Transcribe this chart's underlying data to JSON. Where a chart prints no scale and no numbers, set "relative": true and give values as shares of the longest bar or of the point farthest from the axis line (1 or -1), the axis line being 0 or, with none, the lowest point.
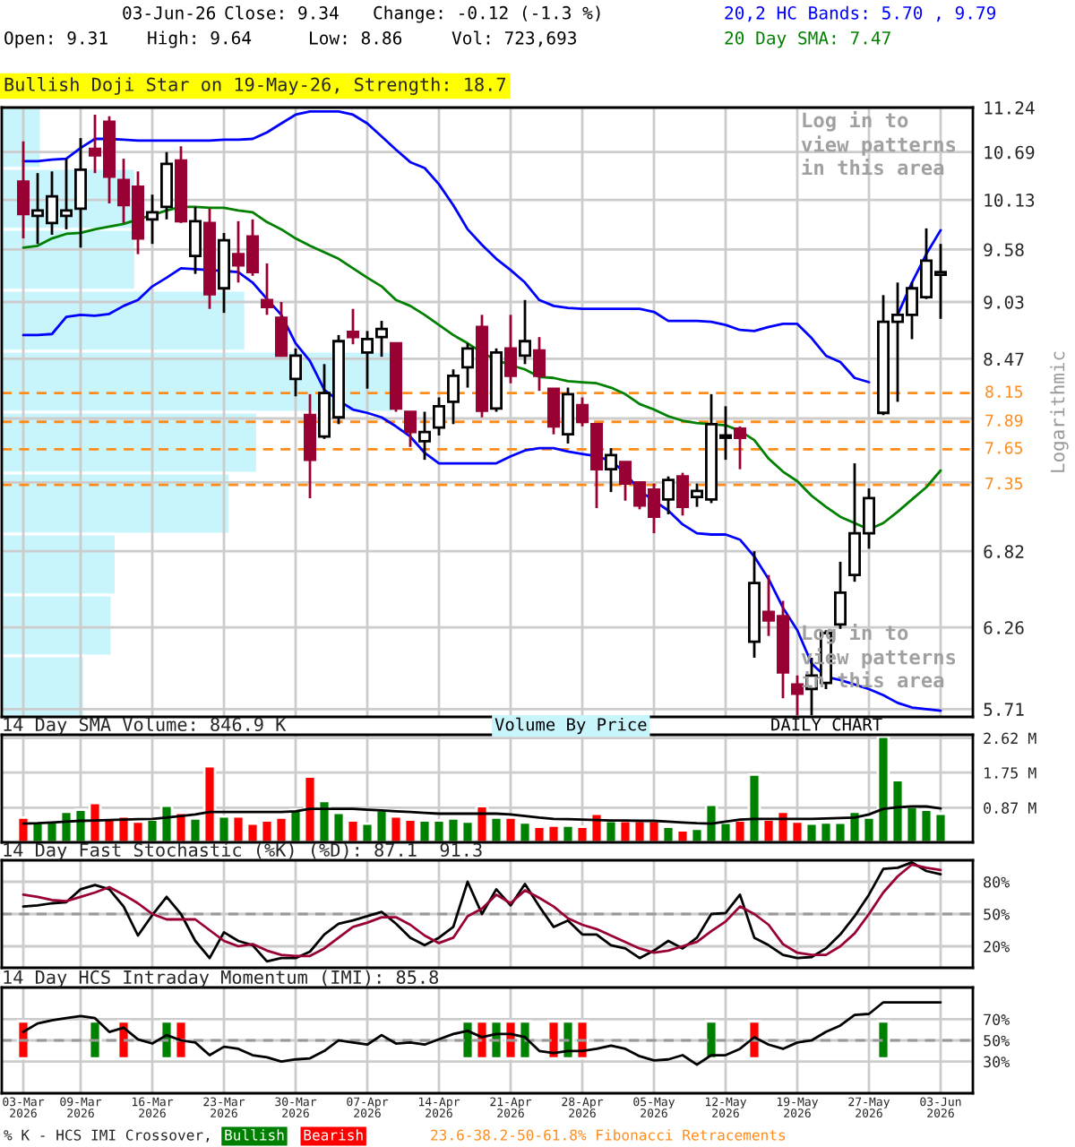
{
  "chart_data": [
    {
      "type": "candlestick",
      "title": "Bullish Doji Star on 19-May-26, Strength: 18.7",
      "ylabel": "Logarithmic",
      "categories": [
        null,
        null,
        null,
        null,
        null,
        null,
        null,
        null,
        null,
        null,
        null,
        null,
        null,
        null,
        null,
        null,
        null,
        null,
        null,
        null,
        null,
        null,
        null,
        null,
        null,
        null,
        null,
        null,
        null,
        null,
        null,
        null,
        null,
        null,
        null,
        null,
        null,
        null,
        null,
        null,
        null,
        null,
        null,
        null,
        null,
        null,
        null,
        null,
        null,
        null,
        null,
        null,
        null,
        null,
        null,
        null,
        null,
        null,
        null,
        null,
        null,
        null,
        null,
        null,
        null
      ],
      "ohlc": [
        [
          10.34,
          10.82,
          9.7,
          9.97
        ],
        [
          9.95,
          10.44,
          9.64,
          10.01
        ],
        [
          9.87,
          10.46,
          9.74,
          10.17
        ],
        [
          9.95,
          10.61,
          9.8,
          10.01
        ],
        [
          10.03,
          10.86,
          9.6,
          10.48
        ],
        [
          10.73,
          11.15,
          10.44,
          10.65
        ],
        [
          11.06,
          11.13,
          10.09,
          10.4
        ],
        [
          10.36,
          10.61,
          9.87,
          10.07
        ],
        [
          10.28,
          10.46,
          9.53,
          9.7
        ],
        [
          9.91,
          10.19,
          9.64,
          9.99
        ],
        [
          10.05,
          10.69,
          9.91,
          10.55
        ],
        [
          10.59,
          10.76,
          9.87,
          9.89
        ],
        [
          9.51,
          10.05,
          9.32,
          9.89
        ],
        [
          9.87,
          10.03,
          8.96,
          9.11
        ],
        [
          9.17,
          9.76,
          8.92,
          9.68
        ],
        [
          9.53,
          9.89,
          9.23,
          9.41
        ],
        [
          9.72,
          9.91,
          9.3,
          9.34
        ],
        [
          9.05,
          9.43,
          8.9,
          8.98
        ],
        [
          8.87,
          9.03,
          8.49,
          8.5
        ],
        [
          8.28,
          8.57,
          8.12,
          8.5
        ],
        [
          7.95,
          8.14,
          7.24,
          7.56
        ],
        [
          7.76,
          8.42,
          7.74,
          8.15
        ],
        [
          7.93,
          8.7,
          7.87,
          8.64
        ],
        [
          8.73,
          8.96,
          8.61,
          8.68
        ],
        [
          8.53,
          8.74,
          8.19,
          8.66
        ],
        [
          8.68,
          8.84,
          8.49,
          8.76
        ],
        [
          8.62,
          8.62,
          7.98,
          8.01
        ],
        [
          7.98,
          7.98,
          7.67,
          7.8
        ],
        [
          7.72,
          7.98,
          7.56,
          7.8
        ],
        [
          7.84,
          8.11,
          7.77,
          8.03
        ],
        [
          8.07,
          8.37,
          7.87,
          8.31
        ],
        [
          8.39,
          8.62,
          8.2,
          8.57
        ],
        [
          8.78,
          8.9,
          7.93,
          7.99
        ],
        [
          8.01,
          8.57,
          7.98,
          8.53
        ],
        [
          8.57,
          8.9,
          8.24,
          8.31
        ],
        [
          8.5,
          9.05,
          8.42,
          8.64
        ],
        [
          8.55,
          8.68,
          8.17,
          8.31
        ],
        [
          8.19,
          8.19,
          7.78,
          7.85
        ],
        [
          7.78,
          8.2,
          7.7,
          8.14
        ],
        [
          8.04,
          8.11,
          7.85,
          7.89
        ],
        [
          7.87,
          7.87,
          7.16,
          7.48
        ],
        [
          7.48,
          7.66,
          7.29,
          7.6
        ],
        [
          7.54,
          7.54,
          7.22,
          7.36
        ],
        [
          7.37,
          7.37,
          7.15,
          7.18
        ],
        [
          7.31,
          7.36,
          6.96,
          7.09
        ],
        [
          7.23,
          7.42,
          7.11,
          7.39
        ],
        [
          7.42,
          7.45,
          7.1,
          7.17
        ],
        [
          7.25,
          7.36,
          7.17,
          7.3
        ],
        [
          7.23,
          8.14,
          7.2,
          7.87
        ],
        [
          7.75,
          8.03,
          7.56,
          7.77
        ],
        [
          7.83,
          7.85,
          7.48,
          7.75
        ],
        [
          6.16,
          6.82,
          6.05,
          6.58
        ],
        [
          6.37,
          6.64,
          6.2,
          6.31
        ],
        [
          6.34,
          6.45,
          5.78,
          5.95
        ],
        [
          5.87,
          5.93,
          5.67,
          5.81
        ],
        [
          5.84,
          6.05,
          5.67,
          5.93
        ],
        [
          5.88,
          6.24,
          5.84,
          6.22
        ],
        [
          6.28,
          6.74,
          6.25,
          6.51
        ],
        [
          6.64,
          7.53,
          6.59,
          6.96
        ],
        [
          6.96,
          7.32,
          6.84,
          7.24
        ],
        [
          7.97,
          9.1,
          7.95,
          8.83
        ],
        [
          8.83,
          9.23,
          8.07,
          8.9
        ],
        [
          8.9,
          9.23,
          8.66,
          9.17
        ],
        [
          9.08,
          9.81,
          9.06,
          9.46
        ],
        [
          9.31,
          9.64,
          8.86,
          9.34
        ]
      ],
      "series": [
        {
          "type": "line",
          "name": "20,2 HC Bands: 5.70 , 9.79",
          "color": "#0000ff",
          "values": [
            10.58,
            10.58,
            10.6,
            10.61,
            10.74,
            10.85,
            10.85,
            10.84,
            10.83,
            10.83,
            10.83,
            10.83,
            10.83,
            10.83,
            10.84,
            10.84,
            10.85,
            10.93,
            11.04,
            11.15,
            11.19,
            11.19,
            11.19,
            11.15,
            11.04,
            10.88,
            10.72,
            10.57,
            10.5,
            10.31,
            10.07,
            9.8,
            9.63,
            9.48,
            9.36,
            9.23,
            9.05,
            8.99,
            8.97,
            8.96,
            8.96,
            8.96,
            8.96,
            8.96,
            8.93,
            8.84,
            8.84,
            8.84,
            8.83,
            8.8,
            8.75,
            8.74,
            8.78,
            8.81,
            8.81,
            8.67,
            8.5,
            8.44,
            8.29,
            8.25,
            null,
            8.9,
            9.23,
            9.53,
            9.79
          ]
        },
        {
          "type": "line",
          "color": "#0000ff",
          "values": [
            8.7,
            8.7,
            8.71,
            8.88,
            8.9,
            8.89,
            8.91,
            8.99,
            9.05,
            9.19,
            9.28,
            9.38,
            9.37,
            9.36,
            9.35,
            9.34,
            9.23,
            9.06,
            8.9,
            8.62,
            8.45,
            8.18,
            8.08,
            8.0,
            7.97,
            7.93,
            7.85,
            7.76,
            7.62,
            7.53,
            7.53,
            7.53,
            7.53,
            7.53,
            7.59,
            7.64,
            7.66,
            7.66,
            7.63,
            7.61,
            7.59,
            7.55,
            7.45,
            7.3,
            7.22,
            7.14,
            7.03,
            6.96,
            6.95,
            6.95,
            6.91,
            6.78,
            6.61,
            6.4,
            6.24,
            6.01,
            5.92,
            5.9,
            5.87,
            5.84,
            5.8,
            5.75,
            5.72,
            5.71,
            5.7
          ]
        },
        {
          "type": "line",
          "name": "20 Day SMA: 7.47",
          "color": "#008000",
          "values": [
            9.6,
            9.62,
            9.7,
            9.75,
            9.76,
            9.8,
            9.83,
            9.86,
            9.91,
            9.96,
            10.01,
            10.05,
            10.05,
            10.04,
            10.04,
            10.01,
            9.99,
            9.88,
            9.8,
            9.7,
            9.62,
            9.55,
            9.48,
            9.38,
            9.28,
            9.19,
            9.05,
            8.99,
            8.9,
            8.8,
            8.7,
            8.62,
            8.53,
            8.46,
            8.41,
            8.37,
            8.3,
            8.29,
            8.26,
            8.25,
            8.24,
            8.2,
            8.14,
            8.05,
            8.0,
            7.94,
            7.9,
            7.88,
            7.87,
            7.86,
            7.81,
            7.73,
            7.57,
            7.46,
            7.38,
            7.26,
            7.17,
            7.09,
            7.04,
            6.99,
            7.04,
            7.13,
            7.23,
            7.33,
            7.47
          ]
        }
      ],
      "log": true,
      "ylim": [
        5.66,
        11.24
      ],
      "yticks": [
        5.71,
        6.26,
        6.82,
        {
          "value": 7.37,
          "label": null
        },
        {
          "value": 7.92,
          "label": null
        },
        8.47,
        9.03,
        9.58,
        10.13,
        10.69,
        11.24
      ],
      "ref_lines": [
        {
          "axis": "y",
          "value": 8.15,
          "label": "8.15",
          "color": "#ff8c1a",
          "line_style": "dashed"
        },
        {
          "axis": "y",
          "value": 7.89,
          "label": "7.89",
          "color": "#ff8c1a",
          "line_style": "dashed"
        },
        {
          "axis": "y",
          "value": 7.65,
          "label": "7.65",
          "color": "#ff8c1a",
          "line_style": "dashed"
        },
        {
          "axis": "y",
          "value": 7.35,
          "label": "7.35",
          "color": "#ff8c1a",
          "line_style": "dashed"
        }
      ],
      "grid": true,
      "tick_labels": "y",
      "annotations": [
        "03-Jun-26",
        "Close: 9.34",
        "Change: -0.12 (-1.3 %)",
        "Open: 9.31",
        "High: 9.64",
        "Low: 8.86",
        "Vol: 723,693",
        "Log in to\nview patterns\nin this area",
        "Log in to\nview patterns\nin this area",
        "DAILY CHART",
        "23.6-38.2-50-61.8% Fibonacci Retracements",
        "Volume By Price"
      ]
    },
    {
      "type": "bar",
      "orientation": "horizontal",
      "relative": true,
      "categories": [
        null,
        null,
        null,
        null,
        null,
        null,
        null,
        null,
        null,
        null
      ],
      "values": [
        0.1,
        0.34,
        0.34,
        0.62,
        1,
        0.65,
        0.58,
        0.29,
        0.28,
        0.21
      ],
      "color": "#c8f4fc"
    },
    {
      "type": "bar",
      "title": "14 Day SMA Volume: 846.9 K",
      "categories": [
        null,
        null,
        null,
        null,
        null,
        null,
        null,
        null,
        null,
        null,
        null,
        null,
        null,
        null,
        null,
        null,
        null,
        null,
        null,
        null,
        null,
        null,
        null,
        null,
        null,
        null,
        null,
        null,
        null,
        null,
        null,
        null,
        null,
        null,
        null,
        null,
        null,
        null,
        null,
        null,
        null,
        null,
        null,
        null,
        null,
        null,
        null,
        null,
        null,
        null,
        null,
        null,
        null,
        null,
        null,
        null,
        null,
        null,
        null,
        null,
        null,
        null,
        null,
        null,
        null
      ],
      "values": [
        0.62,
        0.49,
        0.54,
        0.77,
        0.82,
        0.99,
        0.57,
        0.65,
        0.52,
        0.57,
        0.92,
        0.74,
        0.6,
        1.91,
        0.65,
        0.65,
        0.47,
        0.55,
        0.62,
        0.82,
        1.65,
        1.04,
        0.74,
        0.55,
        0.47,
        0.81,
        0.65,
        0.57,
        0.55,
        0.55,
        0.6,
        0.52,
        0.91,
        0.62,
        0.62,
        0.5,
        0.39,
        0.42,
        0.42,
        0.39,
        0.72,
        0.54,
        0.54,
        0.54,
        0.54,
        0.39,
        0.3,
        0.34,
        0.94,
        0.49,
        0.55,
        1.7,
        0.57,
        0.77,
        0.52,
        0.47,
        0.5,
        0.49,
        0.77,
        0.62,
        2.65,
        1.56,
        0.89,
        0.82,
        0.72
      ],
      "colors": [
        "#ff0000",
        "#008000",
        "#008000",
        "#008000",
        "#008000",
        "#ff0000",
        "#ff0000",
        "#ff0000",
        "#ff0000",
        "#008000",
        "#008000",
        "#ff0000",
        "#008000",
        "#ff0000",
        "#008000",
        "#ff0000",
        "#ff0000",
        "#ff0000",
        "#ff0000",
        "#008000",
        "#ff0000",
        "#008000",
        "#008000",
        "#ff0000",
        "#008000",
        "#008000",
        "#ff0000",
        "#ff0000",
        "#008000",
        "#008000",
        "#008000",
        "#008000",
        "#ff0000",
        "#008000",
        "#ff0000",
        "#008000",
        "#ff0000",
        "#ff0000",
        "#008000",
        "#ff0000",
        "#ff0000",
        "#008000",
        "#ff0000",
        "#ff0000",
        "#ff0000",
        "#008000",
        "#ff0000",
        "#008000",
        "#008000",
        "#008000",
        "#ff0000",
        "#008000",
        "#ff0000",
        "#ff0000",
        "#ff0000",
        "#008000",
        "#008000",
        "#008000",
        "#008000",
        "#008000",
        "#008000",
        "#008000",
        "#008000",
        "#008000",
        "#008000"
      ],
      "series": [
        {
          "type": "line",
          "color": "#000000",
          "values": [
            0.47,
            0.48,
            0.5,
            0.52,
            0.54,
            0.55,
            0.56,
            0.57,
            0.58,
            0.59,
            0.62,
            0.66,
            0.7,
            0.76,
            0.76,
            0.76,
            0.76,
            0.76,
            0.76,
            0.78,
            0.84,
            0.84,
            0.84,
            0.84,
            0.82,
            0.8,
            0.78,
            0.76,
            0.74,
            0.72,
            0.72,
            0.72,
            0.72,
            0.72,
            0.7,
            0.66,
            0.62,
            0.59,
            0.58,
            0.57,
            0.56,
            0.55,
            0.55,
            0.54,
            0.54,
            0.52,
            0.5,
            0.48,
            0.47,
            0.52,
            0.57,
            0.59,
            0.59,
            0.59,
            0.59,
            0.59,
            0.6,
            0.61,
            0.62,
            0.7,
            0.84,
            0.88,
            0.9,
            0.9,
            0.85
          ]
        }
      ],
      "ylim": [
        0,
        2.7
      ],
      "yticks": [
        {
          "value": 0.87,
          "label": "0.87 M"
        },
        {
          "value": 1.75,
          "label": "1.75 M"
        },
        {
          "value": 2.62,
          "label": "2.62 M"
        }
      ],
      "grid": true,
      "tick_labels": "y"
    },
    {
      "type": "line",
      "title": "14 Day Fast Stochastic (%K) (%D): 87.1  91.3",
      "categories": [
        null,
        null,
        null,
        null,
        null,
        null,
        null,
        null,
        null,
        null,
        null,
        null,
        null,
        null,
        null,
        null,
        null,
        null,
        null,
        null,
        null,
        null,
        null,
        null,
        null,
        null,
        null,
        null,
        null,
        null,
        null,
        null,
        null,
        null,
        null,
        null,
        null,
        null,
        null,
        null,
        null,
        null,
        null,
        null,
        null,
        null,
        null,
        null,
        null,
        null,
        null,
        null,
        null,
        null,
        null,
        null,
        null,
        null,
        null,
        null,
        null,
        null,
        null,
        null,
        null
      ],
      "series": [
        {
          "color": "#000000",
          "values": [
            57,
            58,
            60,
            61,
            73,
            77,
            73,
            57,
            30,
            49,
            66,
            50,
            25,
            9,
            33,
            25,
            21,
            6,
            9,
            9,
            15,
            31,
            41,
            44,
            48,
            52,
            41,
            28,
            21,
            28,
            38,
            80,
            50,
            73,
            58,
            78,
            57,
            38,
            44,
            31,
            31,
            21,
            18,
            9,
            16,
            25,
            18,
            28,
            50,
            51,
            68,
            28,
            21,
            12,
            9,
            10,
            18,
            31,
            48,
            68,
            92,
            93,
            98,
            90,
            87
          ]
        },
        {
          "color": "#990033",
          "values": [
            68,
            66,
            63,
            62,
            66,
            70,
            75,
            68,
            60,
            50,
            45,
            45,
            45,
            35,
            25,
            20,
            22,
            16,
            12,
            11,
            11,
            18,
            28,
            38,
            42,
            47,
            47,
            40,
            30,
            23,
            28,
            48,
            55,
            68,
            60,
            72,
            65,
            57,
            46,
            40,
            36,
            30,
            24,
            18,
            14,
            16,
            20,
            24,
            34,
            43,
            57,
            50,
            40,
            22,
            14,
            12,
            12,
            20,
            32,
            50,
            70,
            85,
            96,
            93,
            91
          ]
        }
      ],
      "ylim": [
        0,
        100
      ],
      "yticks": [
        {
          "value": 20,
          "label": "20%"
        },
        {
          "value": 50,
          "label": "50%"
        },
        {
          "value": 80,
          "label": "80%"
        }
      ],
      "ref_lines": [
        {
          "axis": "y",
          "value": 50,
          "color": "#999999",
          "line_style": "dashed"
        }
      ],
      "grid": true,
      "tick_labels": "y"
    },
    {
      "type": "line",
      "title": "14 Day HCS Intraday Momentum (IMI): 85.8",
      "legend_title": "% K - HCS IMI Crossover,",
      "legend": "bottom",
      "categories": [
        "03-Mar\n2026",
        null,
        null,
        null,
        "09-Mar\n2026",
        null,
        null,
        null,
        null,
        "16-Mar\n2026",
        null,
        null,
        null,
        null,
        "23-Mar\n2026",
        null,
        null,
        null,
        null,
        "30-Mar\n2026",
        null,
        null,
        null,
        null,
        "07-Apr\n2026",
        null,
        null,
        null,
        null,
        "14-Apr\n2026",
        null,
        null,
        null,
        null,
        "21-Apr\n2026",
        null,
        null,
        null,
        null,
        "28-Apr\n2026",
        null,
        null,
        null,
        null,
        "05-May\n2026",
        null,
        null,
        null,
        null,
        "12-May\n2026",
        null,
        null,
        null,
        null,
        "19-May\n2026",
        null,
        null,
        null,
        null,
        "27-May\n2026",
        null,
        null,
        null,
        null,
        "03-Jun\n2026"
      ],
      "series": [
        {
          "type": "bar",
          "name": "Bullish",
          "color": "#008000",
          "values": [
            null,
            null,
            null,
            null,
            null,
            35,
            null,
            null,
            null,
            null,
            35,
            null,
            null,
            null,
            null,
            null,
            null,
            null,
            null,
            null,
            null,
            null,
            null,
            null,
            null,
            null,
            null,
            null,
            null,
            null,
            null,
            35,
            null,
            35,
            null,
            35,
            null,
            null,
            35,
            null,
            null,
            null,
            null,
            null,
            null,
            null,
            null,
            null,
            35,
            null,
            null,
            null,
            null,
            null,
            null,
            null,
            null,
            null,
            null,
            null,
            35,
            null,
            null,
            null,
            null
          ],
          "base": [
            null,
            null,
            null,
            null,
            null,
            33,
            null,
            null,
            null,
            null,
            33,
            null,
            null,
            null,
            null,
            null,
            null,
            null,
            null,
            null,
            null,
            null,
            null,
            null,
            null,
            null,
            null,
            null,
            null,
            null,
            null,
            33,
            null,
            33,
            null,
            33,
            null,
            null,
            33,
            null,
            null,
            null,
            null,
            null,
            null,
            null,
            null,
            null,
            33,
            null,
            null,
            null,
            null,
            null,
            null,
            null,
            null,
            null,
            null,
            null,
            33,
            null,
            null,
            null,
            null
          ]
        },
        {
          "type": "bar",
          "name": "Bearish",
          "color": "#ff0000",
          "values": [
            35,
            null,
            null,
            null,
            null,
            null,
            null,
            35,
            null,
            null,
            null,
            35,
            null,
            null,
            null,
            null,
            null,
            null,
            null,
            null,
            null,
            null,
            null,
            null,
            null,
            null,
            null,
            null,
            null,
            null,
            null,
            null,
            35,
            null,
            35,
            null,
            null,
            35,
            null,
            35,
            null,
            null,
            null,
            null,
            null,
            null,
            null,
            null,
            null,
            null,
            null,
            35,
            null,
            null,
            null,
            null,
            null,
            null,
            null,
            null,
            null,
            null,
            null,
            null,
            null
          ],
          "base": [
            33,
            null,
            null,
            null,
            null,
            null,
            null,
            33,
            null,
            null,
            null,
            33,
            null,
            null,
            null,
            null,
            null,
            null,
            null,
            null,
            null,
            null,
            null,
            null,
            null,
            null,
            null,
            null,
            null,
            null,
            null,
            null,
            33,
            null,
            33,
            null,
            null,
            33,
            null,
            33,
            null,
            null,
            null,
            null,
            null,
            null,
            null,
            null,
            null,
            null,
            null,
            33,
            null,
            null,
            null,
            null,
            null,
            null,
            null,
            null,
            null,
            null,
            null,
            null,
            null
          ]
        },
        {
          "type": "line",
          "color": "#000000",
          "values": [
            58,
            66,
            69,
            71,
            73,
            71,
            58,
            62,
            51,
            47,
            55,
            50,
            48,
            36,
            44,
            42,
            36,
            34,
            30,
            32,
            33,
            40,
            50,
            48,
            46,
            55,
            47,
            48,
            46,
            51,
            56,
            59,
            53,
            56,
            56,
            53,
            40,
            38,
            40,
            40,
            42,
            45,
            42,
            35,
            31,
            32,
            36,
            27,
            36,
            36,
            42,
            53,
            46,
            42,
            48,
            50,
            58,
            64,
            74,
            75,
            86,
            86,
            86,
            86,
            86
          ]
        }
      ],
      "ylim": [
        0,
        100
      ],
      "yticks": [
        {
          "value": 30,
          "label": "30%"
        },
        {
          "value": 50,
          "label": "50%"
        },
        {
          "value": 70,
          "label": "70%"
        }
      ],
      "ref_lines": [
        {
          "axis": "y",
          "value": 50,
          "color": "#999999",
          "line_style": "dashed"
        }
      ],
      "grid": true
    }
  ]
}
